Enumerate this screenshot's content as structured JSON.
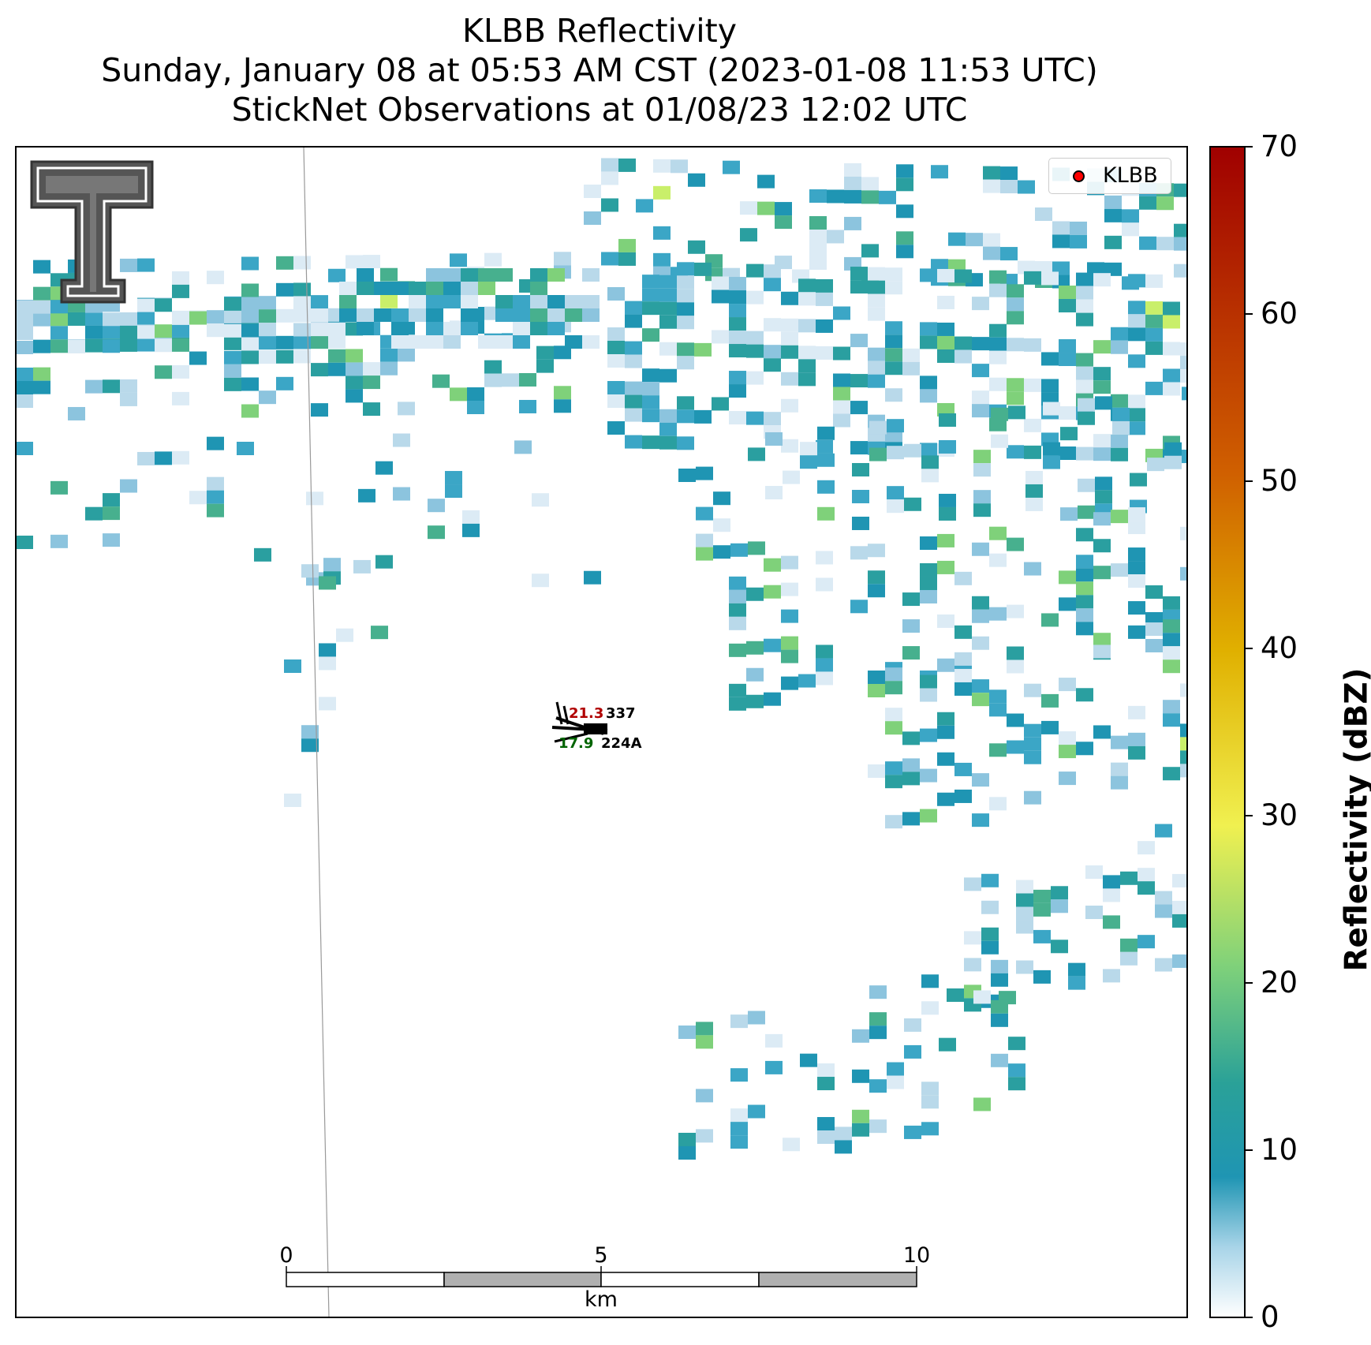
{
  "title": {
    "line1": "KLBB Reflectivity",
    "line2": "Sunday, January 08 at 05:53 AM CST (2023-01-08 11:53 UTC)",
    "line3": "StickNet Observations at 01/08/23 12:02 UTC"
  },
  "colorbar": {
    "label": "Reflectivity (dBZ)",
    "min": 0,
    "max": 70,
    "ticks": [
      "0",
      "10",
      "20",
      "30",
      "40",
      "50",
      "60",
      "70"
    ],
    "colors": [
      "#ffffff",
      "#a8d4e8",
      "#1f95b3",
      "#2aa198",
      "#7fd17a",
      "#f0f050",
      "#e0b000",
      "#d06000",
      "#a00000"
    ]
  },
  "legend": {
    "label": "KLBB",
    "marker_color": "#ff0000"
  },
  "scale_bar": {
    "ticks": [
      "0",
      "5",
      "10"
    ],
    "unit": "km"
  },
  "station_obs": {
    "temperature": "21.3",
    "dewpoint": "17.9",
    "station_id_1": "337",
    "station_id_2": "224A"
  },
  "logo": {
    "name": "Texas Tech Double T"
  }
}
